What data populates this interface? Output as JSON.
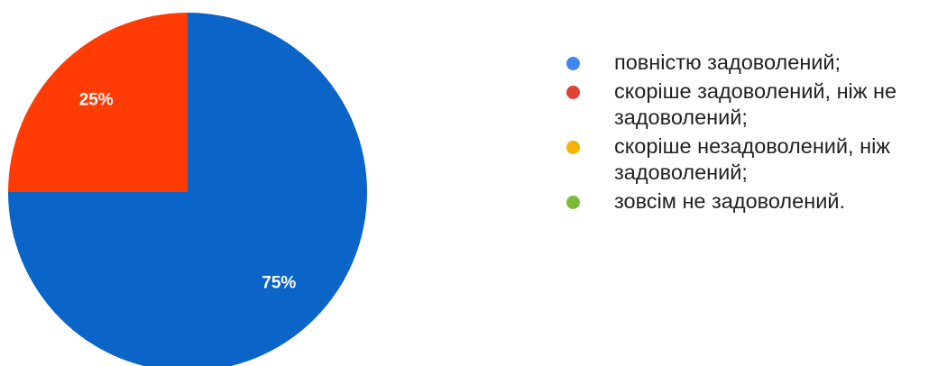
{
  "chart_data": {
    "type": "pie",
    "categories": [
      "повністю задоволений;",
      "скоріше задоволений, ніж не задоволений;",
      "скоріше незадоволений, ніж задоволений;",
      "зовсім не задоволений."
    ],
    "values": [
      75,
      25,
      0,
      0
    ],
    "data_labels": [
      "75%",
      "25%",
      "",
      ""
    ],
    "colors": [
      "#0b64c8",
      "#ff3c06",
      "#f5b400",
      "#6fbf3f"
    ],
    "legend_colors": [
      "#4285f4",
      "#db4437",
      "#f4b400",
      "#7cbb3a"
    ],
    "legend_position": "right",
    "title": ""
  }
}
